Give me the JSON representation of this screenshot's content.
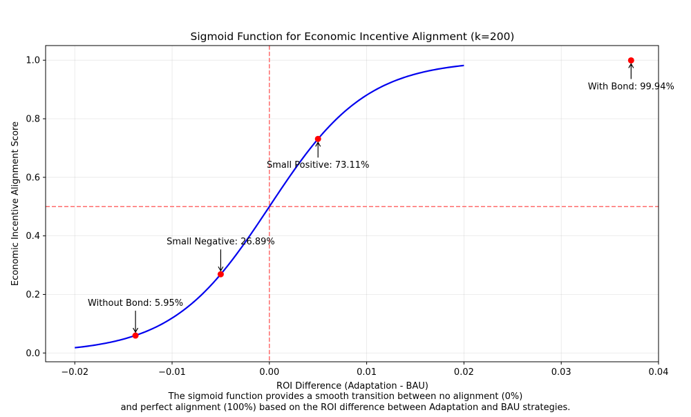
{
  "chart_data": {
    "type": "line",
    "title": "Sigmoid Function for Economic Incentive Alignment (k=200)",
    "xlabel": "ROI Difference (Adaptation - BAU)",
    "ylabel": "Economic Incentive Alignment Score",
    "xlim": [
      -0.023,
      0.04
    ],
    "ylim": [
      -0.03,
      1.05
    ],
    "x_ticks": [
      -0.02,
      -0.01,
      0.0,
      0.01,
      0.02,
      0.03,
      0.04
    ],
    "x_tick_labels": [
      "−0.02",
      "−0.01",
      "0.00",
      "0.01",
      "0.02",
      "0.03",
      "0.04"
    ],
    "y_ticks": [
      0.0,
      0.2,
      0.4,
      0.6,
      0.8,
      1.0
    ],
    "y_tick_labels": [
      "0.0",
      "0.2",
      "0.4",
      "0.6",
      "0.8",
      "1.0"
    ],
    "grid": true,
    "series": [
      {
        "function": "sigmoid",
        "k": 200,
        "x_range": [
          -0.02,
          0.02
        ],
        "color": "#0000ee"
      }
    ],
    "reference_lines": [
      {
        "orientation": "vertical",
        "value": 0.0,
        "color": "#ff6b6b",
        "style": "dashed"
      },
      {
        "orientation": "horizontal",
        "value": 0.5,
        "color": "#ff6b6b",
        "style": "dashed"
      }
    ],
    "points": [
      {
        "x": -0.01376,
        "y": 0.0595,
        "label": "Without Bond: 5.95%",
        "placement": "above"
      },
      {
        "x": -0.005,
        "y": 0.2689,
        "label": "Small Negative: 26.89%",
        "placement": "above"
      },
      {
        "x": 0.005,
        "y": 0.7311,
        "label": "Small Positive: 73.11%",
        "placement": "below"
      },
      {
        "x": 0.03718,
        "y": 0.9994,
        "label": "With Bond: 99.94%",
        "placement": "below"
      }
    ],
    "point_color": "#ff0000"
  },
  "caption": {
    "line1": "The sigmoid function provides a smooth transition between no alignment (0%)",
    "line2": "and perfect alignment (100%) based on the ROI difference between Adaptation and BAU strategies."
  }
}
